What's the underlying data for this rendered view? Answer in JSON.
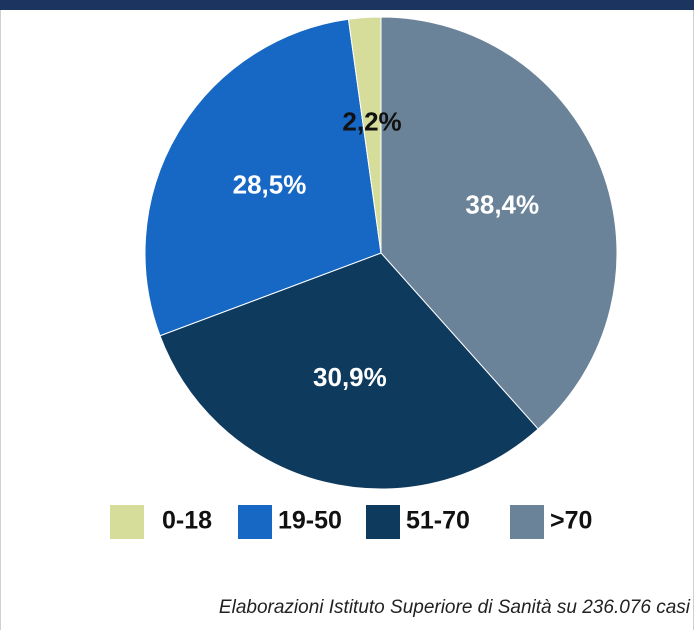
{
  "chart_data": {
    "type": "pie",
    "categories": [
      ">70",
      "51-70",
      "19-50",
      "0-18"
    ],
    "values": [
      38.4,
      30.9,
      28.5,
      2.2
    ],
    "value_labels": [
      "38,4%",
      "30,9%",
      "28,5%",
      "2,2%"
    ],
    "colors": [
      "#6b8398",
      "#0e3a5e",
      "#1668c4",
      "#d6dc9a"
    ],
    "label_colors": [
      "#ffffff",
      "#ffffff",
      "#ffffff",
      "#111111"
    ],
    "note": "Elaborazioni Istituto Superiore di Sanità su 236.076 casi"
  }
}
